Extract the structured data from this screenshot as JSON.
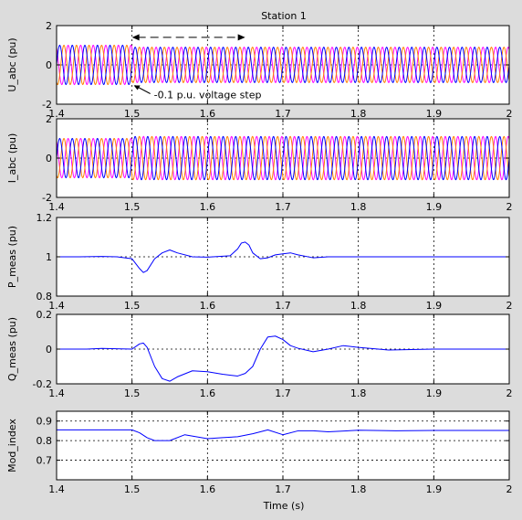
{
  "chart_data": {
    "type": "line",
    "title": "Station 1",
    "xlabel": "Time (s)",
    "xlim": [
      1.4,
      2.0
    ],
    "xticks": [
      1.4,
      1.5,
      1.6,
      1.7,
      1.8,
      1.9,
      2.0
    ],
    "xtick_labels": [
      "1.4",
      "1.5",
      "1.6",
      "1.7",
      "1.8",
      "1.9",
      "2"
    ],
    "grid": "dotted",
    "frequency_hz": 60,
    "colors": {
      "blue": "#0000ff",
      "orange": "#ff8000",
      "magenta": "#ff00ff",
      "black": "#000000"
    },
    "subplots": [
      {
        "id": "u_abc",
        "ylabel": "U_abc (pu)",
        "ylim": [
          -2,
          2
        ],
        "yticks": [
          -2,
          0,
          2
        ],
        "ytick_labels": [
          "-2",
          "0",
          "2"
        ],
        "kind": "three_phase",
        "amplitude_before_step": 1.0,
        "amplitude_after_step": 0.9,
        "step_time": 1.5,
        "annotation_text": "-0.1 p.u. voltage step",
        "annotation_arrow_x": 1.5,
        "annotation_arrow_y": -1.0,
        "span_arrow_x": [
          1.5,
          1.65
        ],
        "span_arrow_y": 1.4
      },
      {
        "id": "i_abc",
        "ylabel": "I_abc (pu)",
        "ylim": [
          -2,
          2
        ],
        "yticks": [
          -2,
          0,
          2
        ],
        "ytick_labels": [
          "-2",
          "0",
          "2"
        ],
        "kind": "three_phase",
        "amplitude_before_step": 1.0,
        "amplitude_after_step": 1.1,
        "step_time": 1.5
      },
      {
        "id": "p_meas",
        "ylabel": "P_meas (pu)",
        "ylim": [
          0.8,
          1.2
        ],
        "yticks": [
          0.8,
          1.0,
          1.2
        ],
        "ytick_labels": [
          "0.8",
          "1",
          "1.2"
        ],
        "kind": "line",
        "x": [
          1.4,
          1.43,
          1.46,
          1.48,
          1.5,
          1.51,
          1.515,
          1.52,
          1.53,
          1.54,
          1.55,
          1.56,
          1.58,
          1.6,
          1.63,
          1.64,
          1.645,
          1.65,
          1.655,
          1.66,
          1.67,
          1.68,
          1.69,
          1.7,
          1.71,
          1.72,
          1.74,
          1.76,
          1.8,
          1.9,
          2.0
        ],
        "y": [
          1.0,
          1.0,
          1.002,
          1.0,
          0.99,
          0.94,
          0.92,
          0.93,
          0.99,
          1.02,
          1.035,
          1.02,
          1.0,
          0.998,
          1.005,
          1.04,
          1.07,
          1.075,
          1.06,
          1.02,
          0.99,
          0.995,
          1.01,
          1.015,
          1.02,
          1.01,
          0.995,
          1.0,
          1.0,
          1.0,
          1.0
        ]
      },
      {
        "id": "q_meas",
        "ylabel": "Q_meas (pu)",
        "ylim": [
          -0.2,
          0.2
        ],
        "yticks": [
          -0.2,
          0,
          0.2
        ],
        "ytick_labels": [
          "-0.2",
          "0",
          "0.2"
        ],
        "kind": "line",
        "x": [
          1.4,
          1.44,
          1.46,
          1.5,
          1.51,
          1.515,
          1.52,
          1.53,
          1.54,
          1.55,
          1.56,
          1.58,
          1.6,
          1.62,
          1.64,
          1.65,
          1.66,
          1.67,
          1.68,
          1.69,
          1.7,
          1.71,
          1.72,
          1.74,
          1.76,
          1.78,
          1.8,
          1.84,
          1.9,
          2.0
        ],
        "y": [
          0.0,
          0.0,
          0.004,
          0.0,
          0.03,
          0.035,
          0.01,
          -0.1,
          -0.17,
          -0.185,
          -0.16,
          -0.125,
          -0.13,
          -0.145,
          -0.155,
          -0.14,
          -0.1,
          0.0,
          0.07,
          0.075,
          0.055,
          0.02,
          0.005,
          -0.015,
          0.0,
          0.02,
          0.01,
          -0.005,
          0.0,
          0.0
        ]
      },
      {
        "id": "mod_index",
        "ylabel": "Mod_index",
        "ylim": [
          0.6,
          0.95
        ],
        "yticks": [
          0.7,
          0.8,
          0.9
        ],
        "ytick_labels": [
          "0.7",
          "0.8",
          "0.9"
        ],
        "kind": "line",
        "x": [
          1.4,
          1.5,
          1.51,
          1.52,
          1.53,
          1.55,
          1.57,
          1.6,
          1.62,
          1.64,
          1.66,
          1.68,
          1.7,
          1.72,
          1.74,
          1.76,
          1.8,
          1.85,
          1.9,
          2.0
        ],
        "y": [
          0.855,
          0.855,
          0.84,
          0.815,
          0.8,
          0.8,
          0.83,
          0.81,
          0.815,
          0.82,
          0.835,
          0.855,
          0.83,
          0.85,
          0.85,
          0.845,
          0.853,
          0.85,
          0.852,
          0.852
        ]
      }
    ]
  }
}
